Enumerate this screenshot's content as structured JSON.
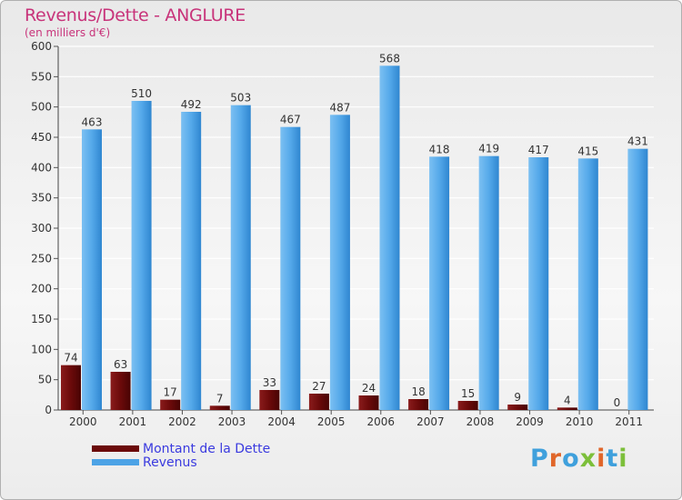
{
  "title": "Revenus/Dette - ANGLURE",
  "subtitle": "(en milliers d'€)",
  "logo": "Proxiti",
  "colors": {
    "dette": "#6b0a0a",
    "revenus": "#4da3e6",
    "title": "#c8337a",
    "legend_text": "#3a3adf"
  },
  "chart_data": {
    "type": "bar",
    "title": "Revenus/Dette - ANGLURE",
    "ylabel": "(en milliers d'€)",
    "xlabel": "",
    "ylim": [
      0,
      600
    ],
    "yticks": [
      0,
      50,
      100,
      150,
      200,
      250,
      300,
      350,
      400,
      450,
      500,
      550,
      600
    ],
    "grid": true,
    "legend_position": "bottom-left",
    "categories": [
      "2000",
      "2001",
      "2002",
      "2003",
      "2004",
      "2005",
      "2006",
      "2007",
      "2008",
      "2009",
      "2010",
      "2011"
    ],
    "series": [
      {
        "name": "Montant de la Dette",
        "color": "#6b0a0a",
        "values": [
          74,
          63,
          17,
          7,
          33,
          27,
          24,
          18,
          15,
          9,
          4,
          0
        ]
      },
      {
        "name": "Revenus",
        "color": "#4da3e6",
        "values": [
          463,
          510,
          492,
          503,
          467,
          487,
          568,
          418,
          419,
          417,
          415,
          431
        ]
      }
    ]
  }
}
